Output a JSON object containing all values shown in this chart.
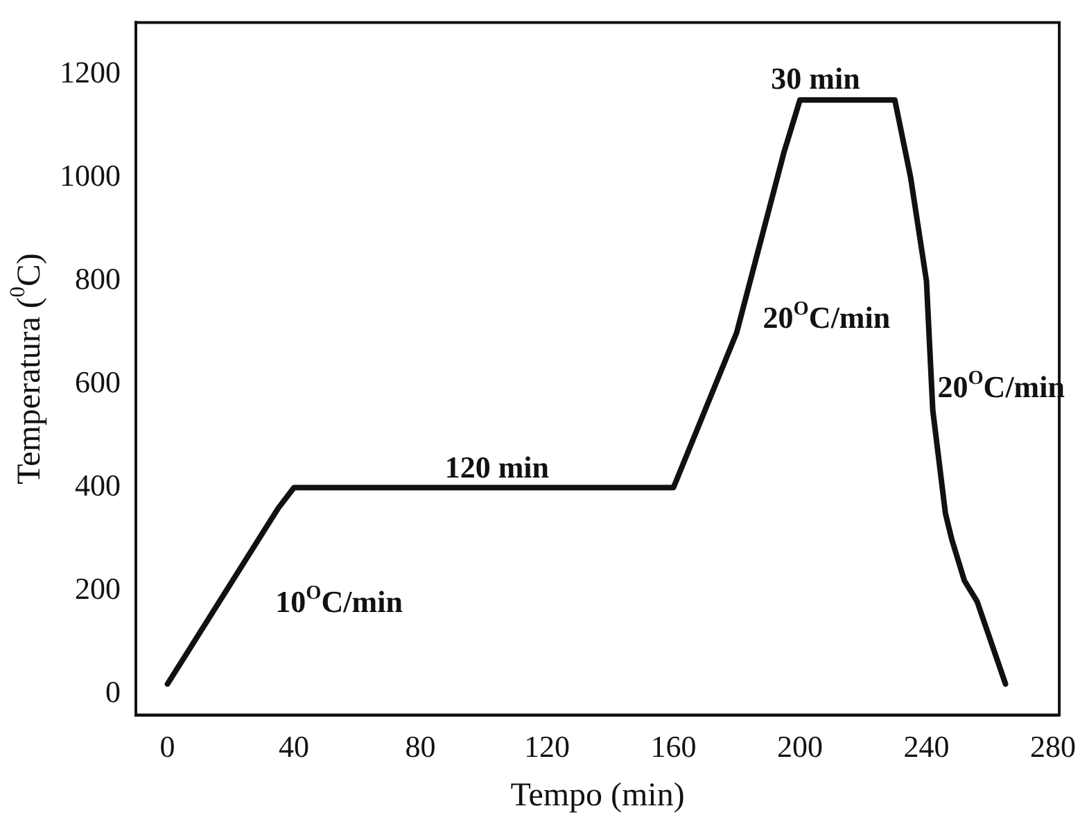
{
  "chart_data": {
    "type": "line",
    "xlabel": "Tempo (min)",
    "ylabel": "Temperatura ($^{0}$C)",
    "x": [
      0,
      35,
      40,
      160,
      180,
      195,
      200,
      230,
      235,
      240,
      242,
      246,
      248,
      252,
      256,
      265
    ],
    "values": [
      20,
      360,
      400,
      400,
      700,
      1050,
      1150,
      1150,
      1000,
      800,
      550,
      350,
      300,
      220,
      180,
      20
    ],
    "color": "#111111",
    "marker": "none",
    "line_style": "solid",
    "grid": false,
    "legend": false,
    "xlim": [
      -10,
      282
    ],
    "xticks": [
      0,
      40,
      80,
      120,
      160,
      200,
      240,
      280
    ],
    "ylim": [
      -40,
      1300
    ],
    "yticks": [
      0,
      200,
      400,
      600,
      800,
      1000,
      1200
    ],
    "annotations": [
      "10$^{O}$C/min",
      "120 min",
      "30 min",
      "20$^{O}$C/min",
      "20$^{O}$C/min"
    ]
  }
}
